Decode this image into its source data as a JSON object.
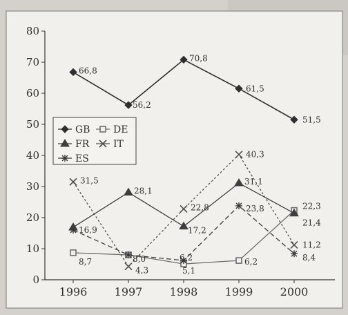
{
  "chart_data": {
    "type": "line",
    "title": "",
    "xlabel": "",
    "ylabel": "",
    "x": [
      "1996",
      "1997",
      "1998",
      "1999",
      "2000"
    ],
    "ylim": [
      0,
      80
    ],
    "yticks": [
      "0",
      "10",
      "20",
      "30",
      "40",
      "50",
      "60",
      "70",
      "80"
    ],
    "legend": {
      "placement": "left-middle",
      "entries": [
        "GB",
        "DE",
        "FR",
        "IT",
        "ES"
      ]
    },
    "series": [
      {
        "name": "GB",
        "values": [
          66.8,
          56.2,
          70.8,
          61.5,
          51.5
        ],
        "labels": [
          "66,8",
          "56,2",
          "70,8",
          "61,5",
          "51,5"
        ],
        "color": "#2f2f2f",
        "dash": "",
        "marker": "diamond"
      },
      {
        "name": "DE",
        "values": [
          8.7,
          8.0,
          5.1,
          6.2,
          22.3
        ],
        "labels": [
          "8,7",
          "8,0",
          "5,1",
          "6,2",
          "22,3"
        ],
        "color": "#6d6d6d",
        "dash": "",
        "marker": "square"
      },
      {
        "name": "FR",
        "values": [
          16.9,
          28.1,
          17.2,
          31.1,
          21.4
        ],
        "labels": [
          "16,9",
          "28,1",
          "17,2",
          "31,1",
          "21,4"
        ],
        "color": "#3e3e3e",
        "dash": "",
        "marker": "triangle"
      },
      {
        "name": "IT",
        "values": [
          31.5,
          4.3,
          22.8,
          40.3,
          11.2
        ],
        "labels": [
          "31,5",
          "4,3",
          "22,8",
          "40,3",
          "11,2"
        ],
        "color": "#4f4f4f",
        "dash": "3,3",
        "marker": "x"
      },
      {
        "name": "ES",
        "values": [
          16.0,
          8.0,
          6.2,
          23.8,
          8.4
        ],
        "labels": [
          "",
          "",
          "6,2",
          "23,8",
          "8,4"
        ],
        "color": "#3a3a3a",
        "dash": "7,4",
        "marker": "star"
      }
    ],
    "grid": false
  }
}
